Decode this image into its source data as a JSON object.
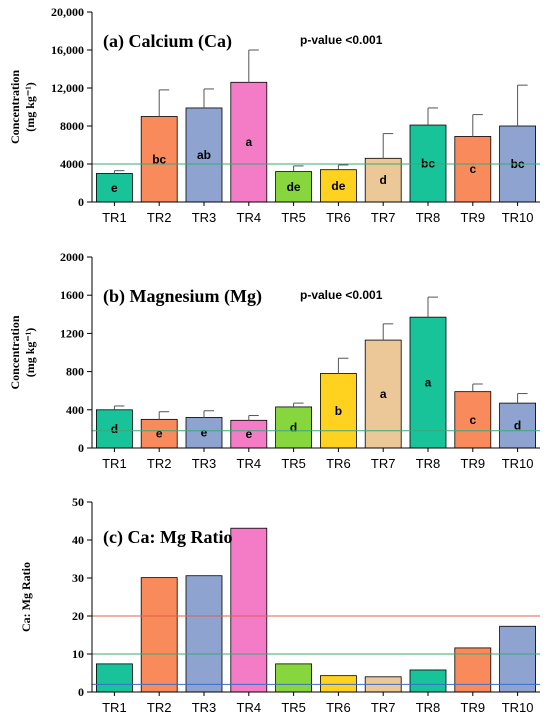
{
  "chart_data": [
    {
      "type": "bar",
      "title": "(a) Calcium (Ca)",
      "annotation": "p-value <0.001",
      "ylabel_line1": "Concentration",
      "ylabel_line2": "(mg kg⁻¹)",
      "categories": [
        "TR1",
        "TR2",
        "TR3",
        "TR4",
        "TR5",
        "TR6",
        "TR7",
        "TR8",
        "TR9",
        "TR10"
      ],
      "values": [
        3000,
        9000,
        9900,
        12600,
        3200,
        3400,
        4600,
        8100,
        6900,
        8000
      ],
      "errors": [
        300,
        2800,
        2000,
        3400,
        600,
        500,
        2600,
        1800,
        2300,
        4300
      ],
      "letters": [
        "e",
        "bc",
        "ab",
        "a",
        "de",
        "de",
        "d",
        "bc",
        "c",
        "bc"
      ],
      "ylim": [
        0,
        20000
      ],
      "yticks": [
        0,
        4000,
        8000,
        12000,
        16000,
        20000
      ],
      "ytick_labels": [
        "0",
        "4000",
        "8000",
        "12,000",
        "16,000",
        "20,000"
      ],
      "reference_lines": [
        {
          "value": 4000,
          "color": "#3aa878"
        }
      ]
    },
    {
      "type": "bar",
      "title": "(b) Magnesium (Mg)",
      "annotation": "p-value <0.001",
      "ylabel_line1": "Concentration",
      "ylabel_line2": "(mg kg⁻¹)",
      "categories": [
        "TR1",
        "TR2",
        "TR3",
        "TR4",
        "TR5",
        "TR6",
        "TR7",
        "TR8",
        "TR9",
        "TR10"
      ],
      "values": [
        400,
        300,
        320,
        290,
        430,
        780,
        1130,
        1370,
        590,
        470
      ],
      "errors": [
        40,
        80,
        70,
        50,
        40,
        160,
        170,
        210,
        80,
        100
      ],
      "letters": [
        "d",
        "e",
        "e",
        "e",
        "d",
        "b",
        "a",
        "a",
        "c",
        "d"
      ],
      "ylim": [
        0,
        2000
      ],
      "yticks": [
        0,
        400,
        800,
        1200,
        1600,
        2000
      ],
      "ytick_labels": [
        "0",
        "400",
        "800",
        "1200",
        "1600",
        "2000"
      ],
      "reference_lines": [
        {
          "value": 180,
          "color": "#3aa878"
        }
      ]
    },
    {
      "type": "bar",
      "title": "(c) Ca: Mg Ratio",
      "annotation": "",
      "ylabel_line1": "Ca: Mg Ratio",
      "ylabel_line2": "",
      "categories": [
        "TR1",
        "TR2",
        "TR3",
        "TR4",
        "TR5",
        "TR6",
        "TR7",
        "TR8",
        "TR9",
        "TR10"
      ],
      "values": [
        7.4,
        30.1,
        30.6,
        43.1,
        7.4,
        4.3,
        4.0,
        5.8,
        11.6,
        17.3
      ],
      "errors": [],
      "letters": [],
      "ylim": [
        0,
        50
      ],
      "yticks": [
        0,
        10,
        20,
        30,
        40,
        50
      ],
      "ytick_labels": [
        "0",
        "10",
        "20",
        "30",
        "40",
        "50"
      ],
      "reference_lines": [
        {
          "value": 20,
          "color": "#e06050"
        },
        {
          "value": 10,
          "color": "#3aa878"
        },
        {
          "value": 2,
          "color": "#3a6ec8"
        }
      ]
    }
  ],
  "bar_colors": [
    "#18c39a",
    "#f88a5c",
    "#8ea3cf",
    "#f47cc7",
    "#88d63e",
    "#ffd21f",
    "#ecc798",
    "#18c39a",
    "#f88a5c",
    "#8ea3cf"
  ]
}
